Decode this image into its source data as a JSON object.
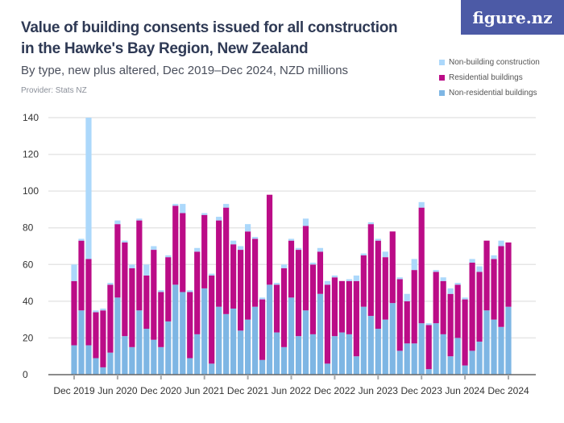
{
  "header": {
    "title": "Value of building consents issued for all construction in the Hawke's Bay Region, New Zealand",
    "subtitle": "By type, new plus altered, Dec 2019–Dec 2024, NZD millions",
    "provider": "Provider: Stats NZ",
    "logo": "figure.nz"
  },
  "chart_data": {
    "type": "bar",
    "stacked": true,
    "title": "Value of building consents issued for all construction in the Hawke's Bay Region, New Zealand",
    "ylim": [
      0,
      140
    ],
    "yticks": [
      0,
      20,
      40,
      60,
      80,
      100,
      120,
      140
    ],
    "xtick_labels": [
      "Dec 2019",
      "Jun 2020",
      "Dec 2020",
      "Jun 2021",
      "Dec 2021",
      "Jun 2022",
      "Dec 2022",
      "Jun 2023",
      "Dec 2023",
      "Jun 2024",
      "Dec 2024"
    ],
    "grid": true,
    "legend_placement": "top-right",
    "categories": [
      "Dec 2019",
      "Jan 2020",
      "Feb 2020",
      "Mar 2020",
      "Apr 2020",
      "May 2020",
      "Jun 2020",
      "Jul 2020",
      "Aug 2020",
      "Sep 2020",
      "Oct 2020",
      "Nov 2020",
      "Dec 2020",
      "Jan 2021",
      "Feb 2021",
      "Mar 2021",
      "Apr 2021",
      "May 2021",
      "Jun 2021",
      "Jul 2021",
      "Aug 2021",
      "Sep 2021",
      "Oct 2021",
      "Nov 2021",
      "Dec 2021",
      "Jan 2022",
      "Feb 2022",
      "Mar 2022",
      "Apr 2022",
      "May 2022",
      "Jun 2022",
      "Jul 2022",
      "Aug 2022",
      "Sep 2022",
      "Oct 2022",
      "Nov 2022",
      "Dec 2022",
      "Jan 2023",
      "Feb 2023",
      "Mar 2023",
      "Apr 2023",
      "May 2023",
      "Jun 2023",
      "Jul 2023",
      "Aug 2023",
      "Sep 2023",
      "Oct 2023",
      "Nov 2023",
      "Dec 2023",
      "Jan 2024",
      "Feb 2024",
      "Mar 2024",
      "Apr 2024",
      "May 2024",
      "Jun 2024",
      "Jul 2024",
      "Aug 2024",
      "Sep 2024",
      "Oct 2024",
      "Nov 2024",
      "Dec 2024"
    ],
    "series": [
      {
        "name": "Non-residential buildings",
        "color": "#7eb6e4",
        "values": [
          16,
          35,
          16,
          9,
          4,
          12,
          42,
          21,
          15,
          35,
          25,
          19,
          15,
          29,
          49,
          45,
          9,
          22,
          47,
          6,
          37,
          33,
          36,
          24,
          30,
          37,
          8,
          49,
          23,
          15,
          42,
          21,
          35,
          22,
          44,
          6,
          21,
          23,
          22,
          10,
          37,
          32,
          25,
          30,
          39,
          13,
          17,
          17,
          28,
          3,
          28,
          22,
          10,
          20,
          5,
          13,
          18,
          35,
          30,
          26,
          37
        ]
      },
      {
        "name": "Residential buildings",
        "color": "#bb0c87",
        "values": [
          35,
          38,
          47,
          25,
          31,
          37,
          40,
          51,
          43,
          49,
          29,
          49,
          30,
          35,
          43,
          43,
          36,
          45,
          40,
          48,
          47,
          58,
          35,
          44,
          48,
          37,
          33,
          49,
          26,
          43,
          31,
          47,
          46,
          38,
          23,
          43,
          32,
          28,
          29,
          41,
          28,
          50,
          48,
          34,
          39,
          39,
          23,
          40,
          63,
          24,
          28,
          29,
          34,
          29,
          36,
          48,
          38,
          38,
          33,
          44,
          35
        ]
      },
      {
        "name": "Non-building construction",
        "color": "#acd8fb",
        "values": [
          9,
          1,
          77,
          1,
          1,
          1,
          2,
          1,
          2,
          1,
          6,
          2,
          1,
          1,
          1,
          5,
          1,
          2,
          1,
          1,
          2,
          2,
          2,
          2,
          4,
          1,
          1,
          0,
          1,
          2,
          1,
          1,
          4,
          1,
          2,
          2,
          1,
          0,
          1,
          3,
          1,
          1,
          1,
          3,
          0,
          1,
          4,
          6,
          3,
          1,
          1,
          2,
          3,
          1,
          1,
          2,
          3,
          0,
          2,
          3,
          0
        ]
      }
    ],
    "legend": [
      "Non-building construction",
      "Residential buildings",
      "Non-residential buildings"
    ]
  }
}
